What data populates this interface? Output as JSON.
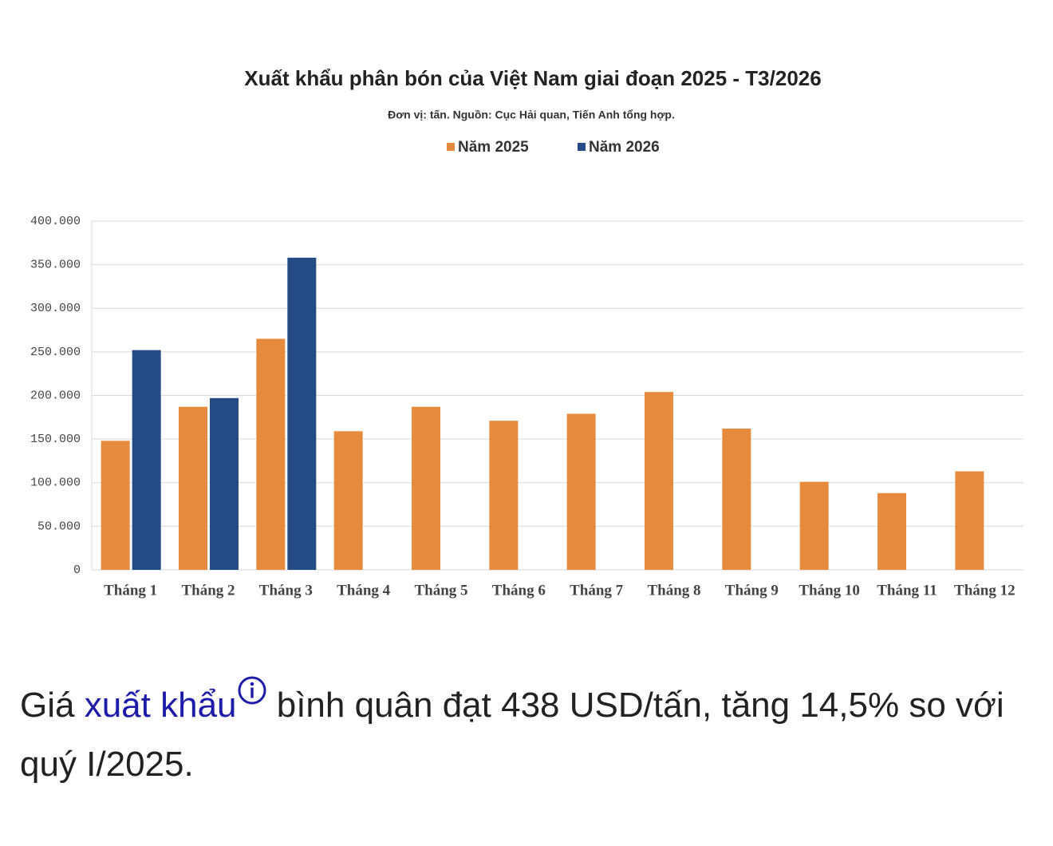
{
  "chart_data": {
    "type": "bar",
    "title": "Xuất khẩu phân bón của Việt Nam giai đoạn 2025 - T3/2026",
    "subtitle": "Đơn vị: tấn. Nguồn: Cục Hải quan, Tiến Anh tổng hợp.",
    "categories": [
      "Tháng 1",
      "Tháng 2",
      "Tháng 3",
      "Tháng 4",
      "Tháng 5",
      "Tháng 6",
      "Tháng 7",
      "Tháng 8",
      "Tháng 9",
      "Tháng 10",
      "Tháng 11",
      "Tháng 12"
    ],
    "series": [
      {
        "name": "Năm 2025",
        "color": "#e68b3d",
        "values": [
          148000,
          187000,
          265000,
          159000,
          187000,
          171000,
          179000,
          204000,
          162000,
          101000,
          88000,
          113000
        ]
      },
      {
        "name": "Năm 2026",
        "color": "#234b84",
        "values": [
          252000,
          197000,
          358000,
          null,
          null,
          null,
          null,
          null,
          null,
          null,
          null,
          null
        ]
      }
    ],
    "ylim": [
      0,
      400000
    ],
    "yticks": [
      0,
      {
        "value": 50000,
        "label": "50.000"
      },
      {
        "value": 100000,
        "label": "100.000"
      },
      {
        "value": 150000,
        "label": "150.000"
      },
      {
        "value": 200000,
        "label": "200.000"
      },
      {
        "value": 250000,
        "label": "250.000"
      },
      {
        "value": 300000,
        "label": "300.000"
      },
      {
        "value": 350000,
        "label": "350.000"
      },
      {
        "value": 400000,
        "label": "400.000"
      }
    ],
    "grid": true,
    "legend": "top"
  },
  "article": {
    "text_before": "Giá ",
    "link": "xuất khẩu",
    "text_after": " bình quân đạt 438 USD/tấn, tăng 14,5% so với quý I/2025."
  }
}
